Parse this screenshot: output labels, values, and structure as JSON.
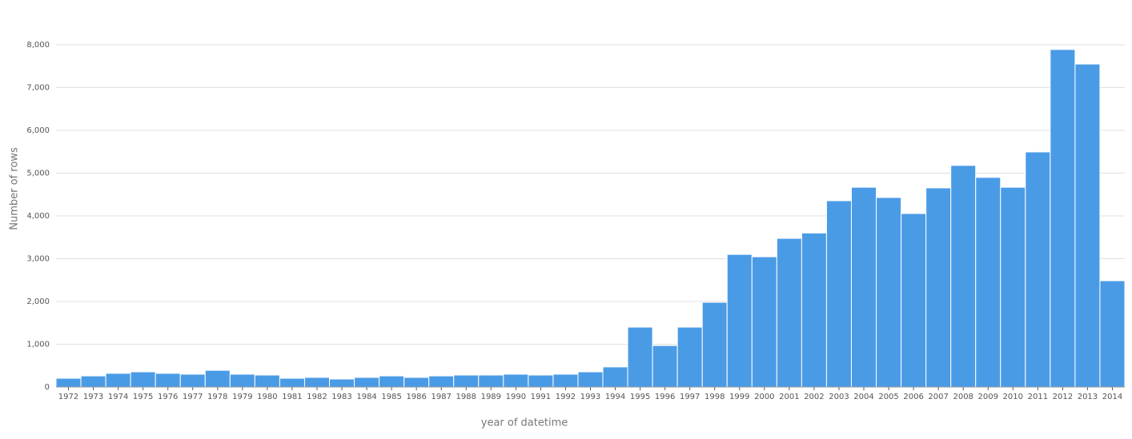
{
  "chart_data": {
    "type": "bar",
    "x_label": "year of datetime",
    "y_label": "Number of rows",
    "categories": [
      "1972",
      "1973",
      "1974",
      "1975",
      "1976",
      "1977",
      "1978",
      "1979",
      "1980",
      "1981",
      "1982",
      "1983",
      "1984",
      "1985",
      "1986",
      "1987",
      "1988",
      "1989",
      "1990",
      "1991",
      "1992",
      "1993",
      "1994",
      "1995",
      "1996",
      "1997",
      "1998",
      "1999",
      "2000",
      "2001",
      "2002",
      "2003",
      "2004",
      "2005",
      "2006",
      "2007",
      "2008",
      "2009",
      "2010",
      "2011",
      "2012",
      "2013",
      "2014"
    ],
    "values": [
      205,
      260,
      320,
      355,
      320,
      300,
      390,
      300,
      280,
      205,
      225,
      187,
      225,
      260,
      225,
      260,
      280,
      280,
      300,
      280,
      300,
      355,
      470,
      1400,
      970,
      1400,
      1980,
      3100,
      3045,
      3475,
      3600,
      4355,
      4670,
      4430,
      4055,
      4655,
      5180,
      4900,
      4670,
      5495,
      7890,
      7550,
      2485
    ],
    "color": "#4a9be6",
    "ylim": [
      0,
      8000
    ],
    "yticks": [
      0,
      {
        "value": 1000,
        "label": "1,000"
      },
      {
        "value": 2000,
        "label": "2,000"
      },
      {
        "value": 3000,
        "label": "3,000"
      },
      {
        "value": 4000,
        "label": "4,000"
      },
      {
        "value": 5000,
        "label": "5,000"
      },
      {
        "value": 6000,
        "label": "6,000"
      },
      {
        "value": 7000,
        "label": "7,000"
      },
      {
        "value": 8000,
        "label": "8,000"
      }
    ],
    "grid": true
  }
}
